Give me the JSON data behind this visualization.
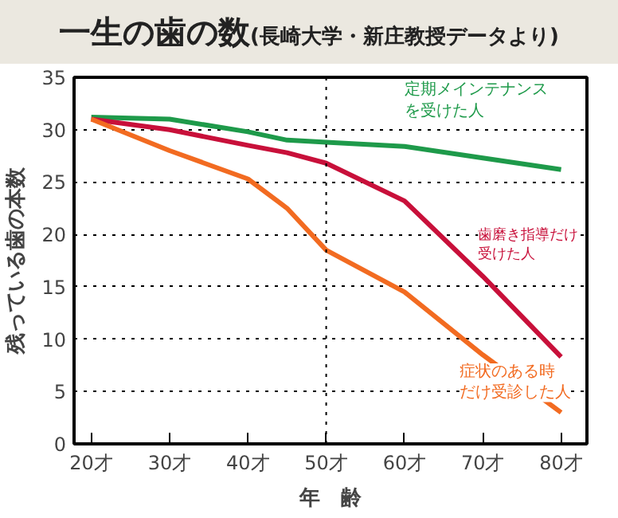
{
  "chart_data": {
    "type": "line",
    "title": "一生の歯の数",
    "subtitle": "(長崎大学・新庄教授データより)",
    "xlabel": "年　齢",
    "ylabel": "残っている歯の本数",
    "x": [
      20,
      30,
      40,
      45,
      50,
      60,
      70,
      80
    ],
    "series": [
      {
        "name": "定期メインテナンスを受けた人",
        "color": "#1e9a4a",
        "values": [
          31.2,
          31.0,
          29.8,
          29.0,
          28.8,
          28.4,
          27.3,
          26.2
        ]
      },
      {
        "name": "歯磨き指導だけ受けた人",
        "color": "#c8103a",
        "values": [
          31.0,
          30.0,
          28.5,
          27.8,
          26.8,
          23.2,
          16.0,
          8.3
        ]
      },
      {
        "name": "症状のある時だけ受診した人",
        "color": "#f26b21",
        "values": [
          31.0,
          28.0,
          25.3,
          22.5,
          18.5,
          14.5,
          8.5,
          3.0
        ]
      }
    ],
    "xlim": [
      17.8,
      83.3
    ],
    "ylim": [
      0,
      35
    ],
    "xticks": [
      {
        "value": 20,
        "label": "20才"
      },
      {
        "value": 30,
        "label": "30才"
      },
      {
        "value": 40,
        "label": "40才"
      },
      {
        "value": 50,
        "label": "50才"
      },
      {
        "value": 60,
        "label": "60才"
      },
      {
        "value": 70,
        "label": "70才"
      },
      {
        "value": 80,
        "label": "80才"
      }
    ],
    "yticks": [
      0,
      5,
      10,
      15,
      20,
      25,
      30,
      35
    ],
    "grid": "y",
    "legend": false,
    "marker": "none",
    "line_style": "solid",
    "ref_lines": [
      {
        "axis": "x",
        "value": 50,
        "label": null,
        "line_style": "dotted",
        "color": "#000000"
      }
    ]
  }
}
